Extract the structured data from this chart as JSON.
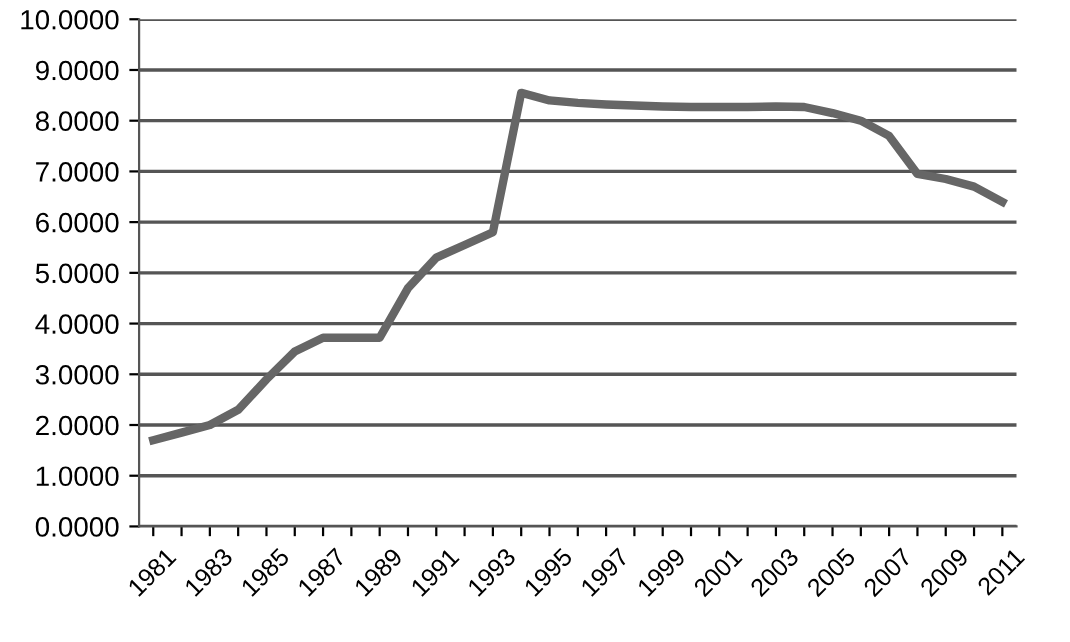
{
  "chart_data": {
    "type": "line",
    "categories": [
      "1981",
      null,
      "1983",
      null,
      "1985",
      null,
      "1987",
      null,
      "1989",
      null,
      "1991",
      null,
      "1993",
      null,
      "1995",
      null,
      "1997",
      null,
      "1999",
      null,
      "2001",
      null,
      "2003",
      null,
      "2005",
      null,
      "2007",
      null,
      "2009",
      null,
      "2011"
    ],
    "series": [
      {
        "color": "#666666",
        "values": [
          1.7,
          1.85,
          2.0,
          2.3,
          2.9,
          3.45,
          3.72,
          3.72,
          3.72,
          4.7,
          5.3,
          5.55,
          5.8,
          8.55,
          8.4,
          8.35,
          8.32,
          8.3,
          8.28,
          8.27,
          8.27,
          8.27,
          8.28,
          8.27,
          8.15,
          8.0,
          7.7,
          6.95,
          6.85,
          6.7,
          6.4
        ]
      }
    ],
    "ylim": [
      0,
      10
    ],
    "yticks": [
      {
        "value": 0,
        "label": "0.0000"
      },
      {
        "value": 1,
        "label": "1.0000"
      },
      {
        "value": 2,
        "label": "2.0000"
      },
      {
        "value": 3,
        "label": "3.0000"
      },
      {
        "value": 4,
        "label": "4.0000"
      },
      {
        "value": 5,
        "label": "5.0000"
      },
      {
        "value": 6,
        "label": "6.0000"
      },
      {
        "value": 7,
        "label": "7.0000"
      },
      {
        "value": 8,
        "label": "8.0000"
      },
      {
        "value": 9,
        "label": "9.0000"
      },
      {
        "value": 10,
        "label": "10.0000"
      }
    ],
    "grid": "y",
    "marker": "none",
    "line_style": "solid"
  }
}
